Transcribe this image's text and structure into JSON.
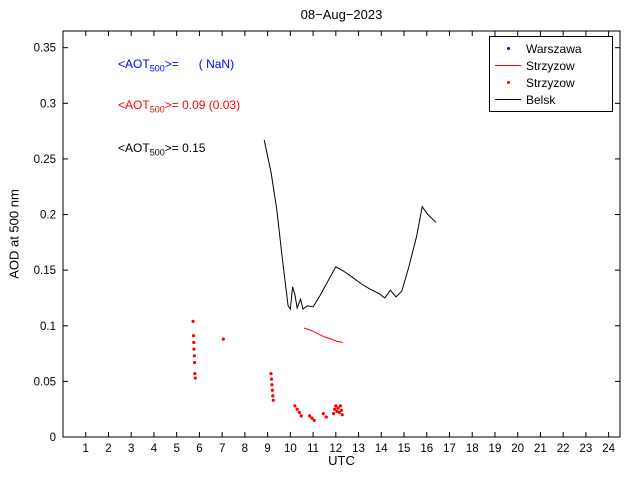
{
  "chart_data": {
    "type": "line",
    "title": "08−Aug−2023",
    "xlabel": "UTC",
    "ylabel": "AOD at 500 nm",
    "xlim": [
      0,
      24.5
    ],
    "ylim": [
      0,
      0.365
    ],
    "grid": false,
    "xticks": [
      1,
      2,
      3,
      4,
      5,
      6,
      7,
      8,
      9,
      10,
      11,
      12,
      13,
      14,
      15,
      16,
      17,
      18,
      19,
      20,
      21,
      22,
      23,
      24
    ],
    "xtick_labels": [
      "1",
      "2",
      "3",
      "4",
      "5",
      "6",
      "7",
      "8",
      "9",
      "10",
      "11",
      "12",
      "13",
      "14",
      "15",
      "16",
      "17",
      "18",
      "19",
      "20",
      "21",
      "22",
      "23",
      "24"
    ],
    "ytick_values": [
      0,
      0.05,
      0.1,
      0.15,
      0.2,
      0.25,
      0.3,
      0.35
    ],
    "ytick_labels": [
      "0",
      "0.05",
      "0.1",
      "0.15",
      "0.2",
      "0.25",
      "0.3",
      "0.35"
    ],
    "legend": {
      "position": "top-right",
      "entries": [
        {
          "label": "Warszawa",
          "marker": "dot",
          "color": "#0000ff"
        },
        {
          "label": "Strzyzow",
          "marker": "line",
          "color": "#ff0000"
        },
        {
          "label": "Strzyzow",
          "marker": "dot",
          "color": "#ff0000"
        },
        {
          "label": "Belsk",
          "marker": "line",
          "color": "#000000"
        }
      ]
    },
    "annotations": [
      {
        "color": "#0000ff",
        "pre": "<AOT",
        "sub": "500",
        "post": ">=      ( NaN)"
      },
      {
        "color": "#ff0000",
        "pre": "<AOT",
        "sub": "500",
        "post": ">= 0.09 (0.03)"
      },
      {
        "color": "#000000",
        "pre": "<AOT",
        "sub": "500",
        "post": ">= 0.15"
      }
    ],
    "series": [
      {
        "name": "Warszawa",
        "type": "scatter",
        "color": "#0000ff",
        "points": []
      },
      {
        "name": "Strzyzow-line",
        "type": "line",
        "color": "#ff0000",
        "points": [
          [
            10.6,
            0.098
          ],
          [
            10.9,
            0.096
          ],
          [
            11.2,
            0.093
          ],
          [
            11.5,
            0.09
          ],
          [
            11.8,
            0.088
          ],
          [
            12.05,
            0.086
          ],
          [
            12.3,
            0.085
          ]
        ]
      },
      {
        "name": "Strzyzow-dots",
        "type": "scatter",
        "color": "#ff0000",
        "points": [
          [
            5.72,
            0.104
          ],
          [
            5.74,
            0.091
          ],
          [
            5.75,
            0.085
          ],
          [
            5.76,
            0.079
          ],
          [
            5.78,
            0.073
          ],
          [
            5.79,
            0.067
          ],
          [
            5.8,
            0.057
          ],
          [
            5.82,
            0.053
          ],
          [
            7.05,
            0.088
          ],
          [
            9.15,
            0.057
          ],
          [
            9.17,
            0.052
          ],
          [
            9.19,
            0.047
          ],
          [
            9.21,
            0.042
          ],
          [
            9.23,
            0.037
          ],
          [
            9.25,
            0.033
          ],
          [
            10.2,
            0.028
          ],
          [
            10.3,
            0.025
          ],
          [
            10.4,
            0.022
          ],
          [
            10.48,
            0.019
          ],
          [
            10.85,
            0.019
          ],
          [
            10.95,
            0.017
          ],
          [
            11.05,
            0.015
          ],
          [
            11.45,
            0.021
          ],
          [
            11.58,
            0.018
          ],
          [
            11.9,
            0.021
          ],
          [
            11.95,
            0.025
          ],
          [
            12.0,
            0.028
          ],
          [
            12.05,
            0.023
          ],
          [
            12.1,
            0.026
          ],
          [
            12.15,
            0.022
          ],
          [
            12.2,
            0.028
          ],
          [
            12.25,
            0.024
          ],
          [
            12.28,
            0.02
          ]
        ]
      },
      {
        "name": "Belsk",
        "type": "line",
        "color": "#000000",
        "points": [
          [
            8.85,
            0.267
          ],
          [
            9.15,
            0.238
          ],
          [
            9.4,
            0.205
          ],
          [
            9.65,
            0.16
          ],
          [
            9.9,
            0.118
          ],
          [
            10.0,
            0.115
          ],
          [
            10.1,
            0.135
          ],
          [
            10.2,
            0.128
          ],
          [
            10.3,
            0.116
          ],
          [
            10.45,
            0.124
          ],
          [
            10.55,
            0.115
          ],
          [
            10.75,
            0.118
          ],
          [
            11.0,
            0.117
          ],
          [
            11.3,
            0.127
          ],
          [
            11.65,
            0.14
          ],
          [
            12.0,
            0.153
          ],
          [
            12.35,
            0.149
          ],
          [
            12.7,
            0.144
          ],
          [
            13.1,
            0.138
          ],
          [
            13.5,
            0.133
          ],
          [
            13.9,
            0.129
          ],
          [
            14.15,
            0.125
          ],
          [
            14.4,
            0.132
          ],
          [
            14.65,
            0.126
          ],
          [
            14.9,
            0.131
          ],
          [
            15.2,
            0.152
          ],
          [
            15.55,
            0.18
          ],
          [
            15.8,
            0.207
          ],
          [
            16.05,
            0.2
          ],
          [
            16.4,
            0.193
          ]
        ]
      }
    ]
  }
}
